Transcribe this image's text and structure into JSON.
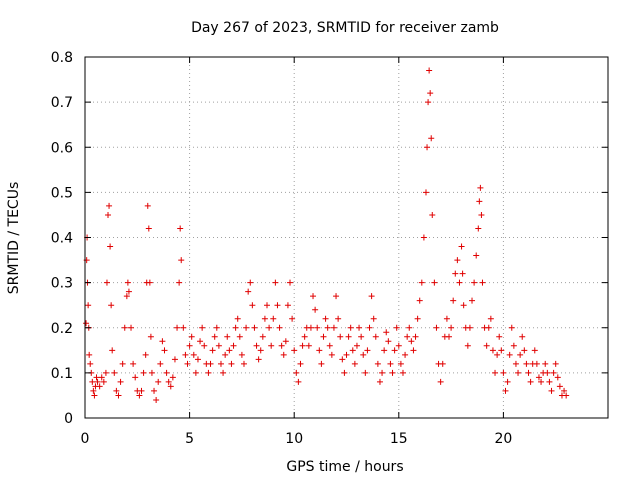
{
  "chart_data": {
    "type": "scatter",
    "title": "Day 267 of 2023, SRMTID for receiver zamb",
    "xlabel": "GPS time / hours",
    "ylabel": "SRMTID / TECUs",
    "xlim": [
      0,
      25
    ],
    "ylim": [
      0,
      0.8
    ],
    "xticks": [
      0,
      5,
      10,
      15,
      20
    ],
    "xtick_labels": [
      "0",
      "5",
      "10",
      "15",
      "20"
    ],
    "yticks": [
      0,
      0.1,
      0.2,
      0.3,
      0.4,
      0.5,
      0.6,
      0.7,
      0.8
    ],
    "ytick_labels": [
      "0",
      "0.1",
      "0.2",
      "0.3",
      "0.4",
      "0.5",
      "0.6",
      "0.7",
      "0.8"
    ],
    "grid": true,
    "marker": "+",
    "marker_color": "#e00000",
    "series": [
      {
        "name": "zamb",
        "points": [
          [
            0.05,
            0.21
          ],
          [
            0.08,
            0.35
          ],
          [
            0.1,
            0.4
          ],
          [
            0.12,
            0.3
          ],
          [
            0.15,
            0.25
          ],
          [
            0.18,
            0.2
          ],
          [
            0.2,
            0.14
          ],
          [
            0.25,
            0.12
          ],
          [
            0.3,
            0.1
          ],
          [
            0.35,
            0.08
          ],
          [
            0.4,
            0.06
          ],
          [
            0.45,
            0.05
          ],
          [
            0.5,
            0.07
          ],
          [
            0.55,
            0.09
          ],
          [
            0.6,
            0.08
          ],
          [
            0.7,
            0.07
          ],
          [
            0.8,
            0.09
          ],
          [
            0.9,
            0.08
          ],
          [
            1.0,
            0.1
          ],
          [
            1.05,
            0.3
          ],
          [
            1.1,
            0.45
          ],
          [
            1.15,
            0.47
          ],
          [
            1.2,
            0.38
          ],
          [
            1.25,
            0.25
          ],
          [
            1.3,
            0.15
          ],
          [
            1.4,
            0.1
          ],
          [
            1.5,
            0.06
          ],
          [
            1.6,
            0.05
          ],
          [
            1.7,
            0.08
          ],
          [
            1.8,
            0.12
          ],
          [
            1.9,
            0.2
          ],
          [
            2.0,
            0.27
          ],
          [
            2.05,
            0.3
          ],
          [
            2.1,
            0.28
          ],
          [
            2.2,
            0.2
          ],
          [
            2.3,
            0.12
          ],
          [
            2.4,
            0.09
          ],
          [
            2.5,
            0.06
          ],
          [
            2.6,
            0.05
          ],
          [
            2.7,
            0.06
          ],
          [
            2.8,
            0.1
          ],
          [
            2.9,
            0.14
          ],
          [
            2.95,
            0.3
          ],
          [
            3.0,
            0.47
          ],
          [
            3.05,
            0.42
          ],
          [
            3.1,
            0.3
          ],
          [
            3.15,
            0.18
          ],
          [
            3.2,
            0.1
          ],
          [
            3.3,
            0.06
          ],
          [
            3.4,
            0.04
          ],
          [
            3.5,
            0.08
          ],
          [
            3.6,
            0.12
          ],
          [
            3.7,
            0.17
          ],
          [
            3.8,
            0.15
          ],
          [
            3.9,
            0.1
          ],
          [
            4.0,
            0.08
          ],
          [
            4.1,
            0.07
          ],
          [
            4.2,
            0.09
          ],
          [
            4.3,
            0.13
          ],
          [
            4.4,
            0.2
          ],
          [
            4.5,
            0.3
          ],
          [
            4.55,
            0.42
          ],
          [
            4.6,
            0.35
          ],
          [
            4.7,
            0.2
          ],
          [
            4.8,
            0.14
          ],
          [
            4.9,
            0.12
          ],
          [
            5.0,
            0.16
          ],
          [
            5.1,
            0.18
          ],
          [
            5.2,
            0.14
          ],
          [
            5.3,
            0.1
          ],
          [
            5.4,
            0.13
          ],
          [
            5.5,
            0.17
          ],
          [
            5.6,
            0.2
          ],
          [
            5.7,
            0.16
          ],
          [
            5.8,
            0.12
          ],
          [
            5.9,
            0.1
          ],
          [
            6.0,
            0.12
          ],
          [
            6.1,
            0.15
          ],
          [
            6.2,
            0.18
          ],
          [
            6.3,
            0.2
          ],
          [
            6.4,
            0.16
          ],
          [
            6.5,
            0.12
          ],
          [
            6.6,
            0.1
          ],
          [
            6.7,
            0.14
          ],
          [
            6.8,
            0.18
          ],
          [
            6.9,
            0.15
          ],
          [
            7.0,
            0.12
          ],
          [
            7.1,
            0.16
          ],
          [
            7.2,
            0.2
          ],
          [
            7.3,
            0.22
          ],
          [
            7.4,
            0.18
          ],
          [
            7.5,
            0.14
          ],
          [
            7.6,
            0.12
          ],
          [
            7.7,
            0.2
          ],
          [
            7.8,
            0.28
          ],
          [
            7.9,
            0.3
          ],
          [
            8.0,
            0.25
          ],
          [
            8.1,
            0.2
          ],
          [
            8.2,
            0.16
          ],
          [
            8.3,
            0.13
          ],
          [
            8.4,
            0.15
          ],
          [
            8.5,
            0.18
          ],
          [
            8.6,
            0.22
          ],
          [
            8.7,
            0.25
          ],
          [
            8.8,
            0.2
          ],
          [
            8.9,
            0.16
          ],
          [
            9.0,
            0.22
          ],
          [
            9.1,
            0.3
          ],
          [
            9.2,
            0.25
          ],
          [
            9.3,
            0.2
          ],
          [
            9.4,
            0.16
          ],
          [
            9.5,
            0.14
          ],
          [
            9.6,
            0.17
          ],
          [
            9.7,
            0.25
          ],
          [
            9.8,
            0.3
          ],
          [
            9.9,
            0.22
          ],
          [
            10.0,
            0.15
          ],
          [
            10.1,
            0.1
          ],
          [
            10.2,
            0.08
          ],
          [
            10.3,
            0.12
          ],
          [
            10.4,
            0.16
          ],
          [
            10.5,
            0.18
          ],
          [
            10.6,
            0.2
          ],
          [
            10.7,
            0.16
          ],
          [
            10.8,
            0.2
          ],
          [
            10.9,
            0.27
          ],
          [
            11.0,
            0.24
          ],
          [
            11.1,
            0.2
          ],
          [
            11.2,
            0.15
          ],
          [
            11.3,
            0.12
          ],
          [
            11.4,
            0.18
          ],
          [
            11.5,
            0.22
          ],
          [
            11.6,
            0.2
          ],
          [
            11.7,
            0.16
          ],
          [
            11.8,
            0.14
          ],
          [
            11.9,
            0.2
          ],
          [
            12.0,
            0.27
          ],
          [
            12.1,
            0.22
          ],
          [
            12.2,
            0.18
          ],
          [
            12.3,
            0.13
          ],
          [
            12.4,
            0.1
          ],
          [
            12.5,
            0.14
          ],
          [
            12.6,
            0.18
          ],
          [
            12.7,
            0.2
          ],
          [
            12.8,
            0.15
          ],
          [
            12.9,
            0.12
          ],
          [
            13.0,
            0.16
          ],
          [
            13.1,
            0.2
          ],
          [
            13.2,
            0.18
          ],
          [
            13.3,
            0.14
          ],
          [
            13.4,
            0.1
          ],
          [
            13.5,
            0.15
          ],
          [
            13.6,
            0.2
          ],
          [
            13.7,
            0.27
          ],
          [
            13.8,
            0.22
          ],
          [
            13.9,
            0.18
          ],
          [
            14.0,
            0.12
          ],
          [
            14.1,
            0.08
          ],
          [
            14.2,
            0.1
          ],
          [
            14.3,
            0.15
          ],
          [
            14.4,
            0.19
          ],
          [
            14.5,
            0.17
          ],
          [
            14.6,
            0.12
          ],
          [
            14.7,
            0.1
          ],
          [
            14.8,
            0.15
          ],
          [
            14.9,
            0.2
          ],
          [
            15.0,
            0.16
          ],
          [
            15.1,
            0.12
          ],
          [
            15.2,
            0.1
          ],
          [
            15.3,
            0.14
          ],
          [
            15.4,
            0.18
          ],
          [
            15.5,
            0.2
          ],
          [
            15.6,
            0.17
          ],
          [
            15.7,
            0.15
          ],
          [
            15.8,
            0.18
          ],
          [
            15.9,
            0.22
          ],
          [
            16.0,
            0.26
          ],
          [
            16.1,
            0.3
          ],
          [
            16.2,
            0.4
          ],
          [
            16.3,
            0.5
          ],
          [
            16.35,
            0.6
          ],
          [
            16.4,
            0.7
          ],
          [
            16.45,
            0.77
          ],
          [
            16.5,
            0.72
          ],
          [
            16.55,
            0.62
          ],
          [
            16.6,
            0.45
          ],
          [
            16.7,
            0.3
          ],
          [
            16.8,
            0.2
          ],
          [
            16.9,
            0.12
          ],
          [
            17.0,
            0.08
          ],
          [
            17.1,
            0.12
          ],
          [
            17.2,
            0.18
          ],
          [
            17.3,
            0.22
          ],
          [
            17.4,
            0.18
          ],
          [
            17.5,
            0.2
          ],
          [
            17.6,
            0.26
          ],
          [
            17.7,
            0.32
          ],
          [
            17.8,
            0.35
          ],
          [
            17.9,
            0.3
          ],
          [
            18.0,
            0.38
          ],
          [
            18.05,
            0.32
          ],
          [
            18.1,
            0.25
          ],
          [
            18.2,
            0.2
          ],
          [
            18.3,
            0.16
          ],
          [
            18.4,
            0.2
          ],
          [
            18.5,
            0.26
          ],
          [
            18.6,
            0.3
          ],
          [
            18.7,
            0.36
          ],
          [
            18.8,
            0.42
          ],
          [
            18.85,
            0.48
          ],
          [
            18.9,
            0.51
          ],
          [
            18.95,
            0.45
          ],
          [
            19.0,
            0.3
          ],
          [
            19.1,
            0.2
          ],
          [
            19.2,
            0.16
          ],
          [
            19.3,
            0.2
          ],
          [
            19.4,
            0.22
          ],
          [
            19.5,
            0.15
          ],
          [
            19.6,
            0.1
          ],
          [
            19.7,
            0.14
          ],
          [
            19.8,
            0.18
          ],
          [
            19.9,
            0.15
          ],
          [
            20.0,
            0.1
          ],
          [
            20.1,
            0.06
          ],
          [
            20.2,
            0.08
          ],
          [
            20.3,
            0.14
          ],
          [
            20.4,
            0.2
          ],
          [
            20.5,
            0.16
          ],
          [
            20.6,
            0.12
          ],
          [
            20.7,
            0.1
          ],
          [
            20.8,
            0.14
          ],
          [
            20.9,
            0.18
          ],
          [
            21.0,
            0.15
          ],
          [
            21.1,
            0.12
          ],
          [
            21.2,
            0.1
          ],
          [
            21.3,
            0.08
          ],
          [
            21.4,
            0.12
          ],
          [
            21.5,
            0.15
          ],
          [
            21.6,
            0.12
          ],
          [
            21.7,
            0.09
          ],
          [
            21.8,
            0.08
          ],
          [
            21.9,
            0.1
          ],
          [
            22.0,
            0.12
          ],
          [
            22.1,
            0.1
          ],
          [
            22.2,
            0.08
          ],
          [
            22.3,
            0.06
          ],
          [
            22.4,
            0.1
          ],
          [
            22.5,
            0.12
          ],
          [
            22.6,
            0.09
          ],
          [
            22.7,
            0.07
          ],
          [
            22.8,
            0.05
          ],
          [
            22.9,
            0.06
          ],
          [
            23.0,
            0.05
          ]
        ]
      }
    ]
  }
}
